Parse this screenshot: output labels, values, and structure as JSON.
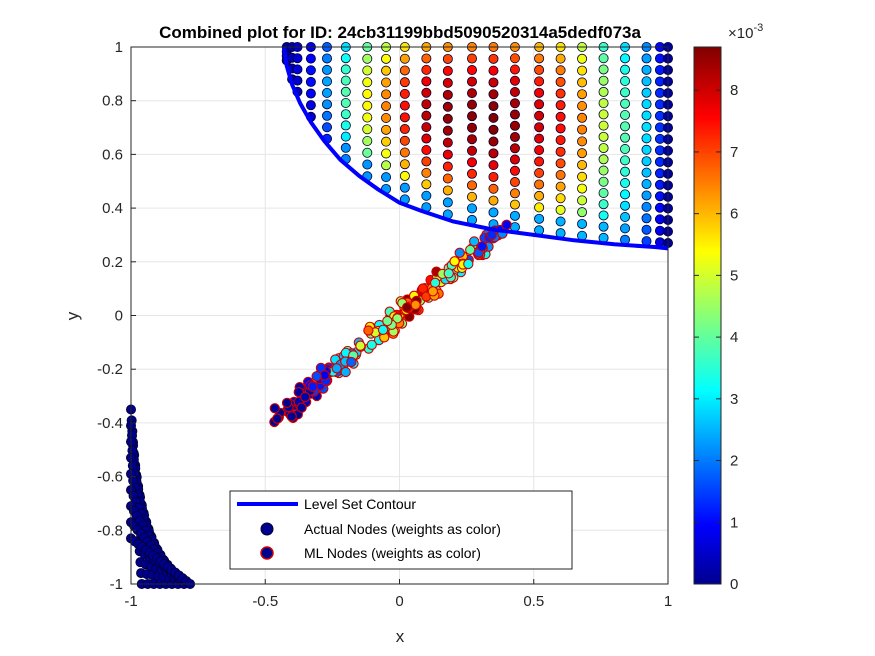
{
  "chart_data": {
    "type": "scatter",
    "title": "Combined plot for ID: 24cb31199bbd5090520314a5dedf073a",
    "xlabel": "x",
    "ylabel": "y",
    "xlim": [
      -1,
      1
    ],
    "ylim": [
      -1,
      1
    ],
    "xticks": [
      "-1",
      "-0.5",
      "0",
      "0.5",
      "1"
    ],
    "yticks": [
      "-1",
      "-0.8",
      "-0.6",
      "-0.4",
      "-0.2",
      "0",
      "0.2",
      "0.4",
      "0.6",
      "0.8",
      "1"
    ],
    "grid": true,
    "colorbar": {
      "colormap": "jet",
      "range": [
        0,
        0.0087
      ],
      "exponent_label": "×10",
      "exponent": "-3",
      "ticks": [
        "0",
        "1",
        "2",
        "3",
        "4",
        "5",
        "6",
        "7",
        "8"
      ]
    },
    "legend": {
      "position": "bottom-center",
      "entries": [
        "Level Set Contour",
        "Actual Nodes (weights as color)",
        "ML Nodes (weights as color)"
      ]
    },
    "series": [
      {
        "name": "Level Set Contour",
        "kind": "line",
        "color": "#0000ff",
        "x": [
          -0.43,
          -0.42,
          -0.4,
          -0.37,
          -0.33,
          -0.28,
          -0.22,
          -0.15,
          -0.08,
          0.0,
          0.08,
          0.2,
          0.35,
          0.5,
          0.65,
          0.8,
          0.95,
          1.0
        ],
        "y": [
          1.0,
          0.93,
          0.86,
          0.79,
          0.72,
          0.65,
          0.58,
          0.52,
          0.47,
          0.42,
          0.39,
          0.35,
          0.32,
          0.3,
          0.28,
          0.265,
          0.255,
          0.25
        ]
      },
      {
        "name": "Actual Nodes (weights as color)",
        "kind": "scatter",
        "edgecolor": "#000033",
        "note_regions": [
          {
            "region": "upper grid",
            "x_columns": [
              -0.42,
              -0.4,
              -0.38,
              -0.33,
              -0.27,
              -0.2,
              -0.12,
              -0.05,
              0.02,
              0.1,
              0.18,
              0.27,
              0.35,
              0.43,
              0.52,
              0.6,
              0.68,
              0.76,
              0.84,
              0.92,
              0.97,
              1.0
            ],
            "column_weights_e3": [
              0.2,
              0.5,
              0.8,
              1.2,
              2.5,
              4.0,
              5.5,
              6.5,
              7.5,
              8.2,
              8.5,
              8.6,
              8.7,
              8.5,
              8.0,
              7.5,
              6.5,
              5.0,
              4.0,
              3.0,
              1.5,
              0.3
            ]
          },
          {
            "region": "lower-left fan",
            "x_range": [
              -1.0,
              -0.78
            ],
            "y_range": [
              -1.0,
              -0.35
            ],
            "weight_e3": 0.1
          }
        ]
      },
      {
        "name": "ML Nodes (weights as color)",
        "kind": "scatter",
        "edgecolor": "#cc0000",
        "band": {
          "x_start": -0.45,
          "y_start": -0.38,
          "x_end": 0.38,
          "y_end": 0.32
        },
        "weight_profile_e3": [
          0.2,
          0.5,
          1.5,
          3.0,
          5.0,
          6.5,
          7.5,
          8.0,
          7.0,
          5.0,
          3.5,
          2.0
        ]
      }
    ]
  }
}
